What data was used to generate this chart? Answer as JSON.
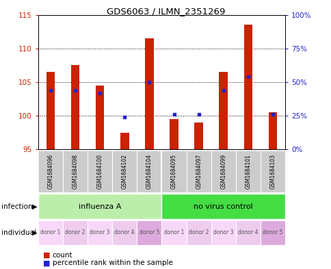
{
  "title": "GDS6063 / ILMN_2351269",
  "samples": [
    "GSM1684096",
    "GSM1684098",
    "GSM1684100",
    "GSM1684102",
    "GSM1684104",
    "GSM1684095",
    "GSM1684097",
    "GSM1684099",
    "GSM1684101",
    "GSM1684103"
  ],
  "count_values": [
    106.5,
    107.5,
    104.5,
    97.5,
    111.5,
    99.5,
    99.0,
    106.5,
    113.5,
    100.5
  ],
  "percentile_values": [
    44,
    44,
    42,
    24,
    50,
    26,
    26,
    44,
    54,
    26
  ],
  "ylim_left": [
    95,
    115
  ],
  "ylim_right": [
    0,
    100
  ],
  "yticks_left": [
    95,
    100,
    105,
    110,
    115
  ],
  "yticks_right": [
    0,
    25,
    50,
    75,
    100
  ],
  "ytick_labels_right": [
    "0%",
    "25%",
    "50%",
    "75%",
    "100%"
  ],
  "infection_groups": [
    {
      "label": "influenza A",
      "start": 0,
      "end": 5,
      "color": "#bbeeaa"
    },
    {
      "label": "no virus control",
      "start": 5,
      "end": 10,
      "color": "#44dd44"
    }
  ],
  "individual_labels": [
    "donor 1",
    "donor 2",
    "donor 3",
    "donor 4",
    "donor 5",
    "donor 1",
    "donor 2",
    "donor 3",
    "donor 4",
    "donor 5"
  ],
  "individual_colors": [
    "#f8d8f8",
    "#eeccee",
    "#f8d8f8",
    "#eeccee",
    "#ddaadd",
    "#f8d8f8",
    "#eeccee",
    "#f8d8f8",
    "#eeccee",
    "#ddaadd"
  ],
  "bar_color": "#cc2200",
  "dot_color": "#2222cc",
  "bar_baseline": 95,
  "bg_color": "#ffffff",
  "tick_color_left": "#cc2200",
  "tick_color_right": "#2222cc",
  "sample_bg_color": "#cccccc",
  "bar_width": 0.35
}
